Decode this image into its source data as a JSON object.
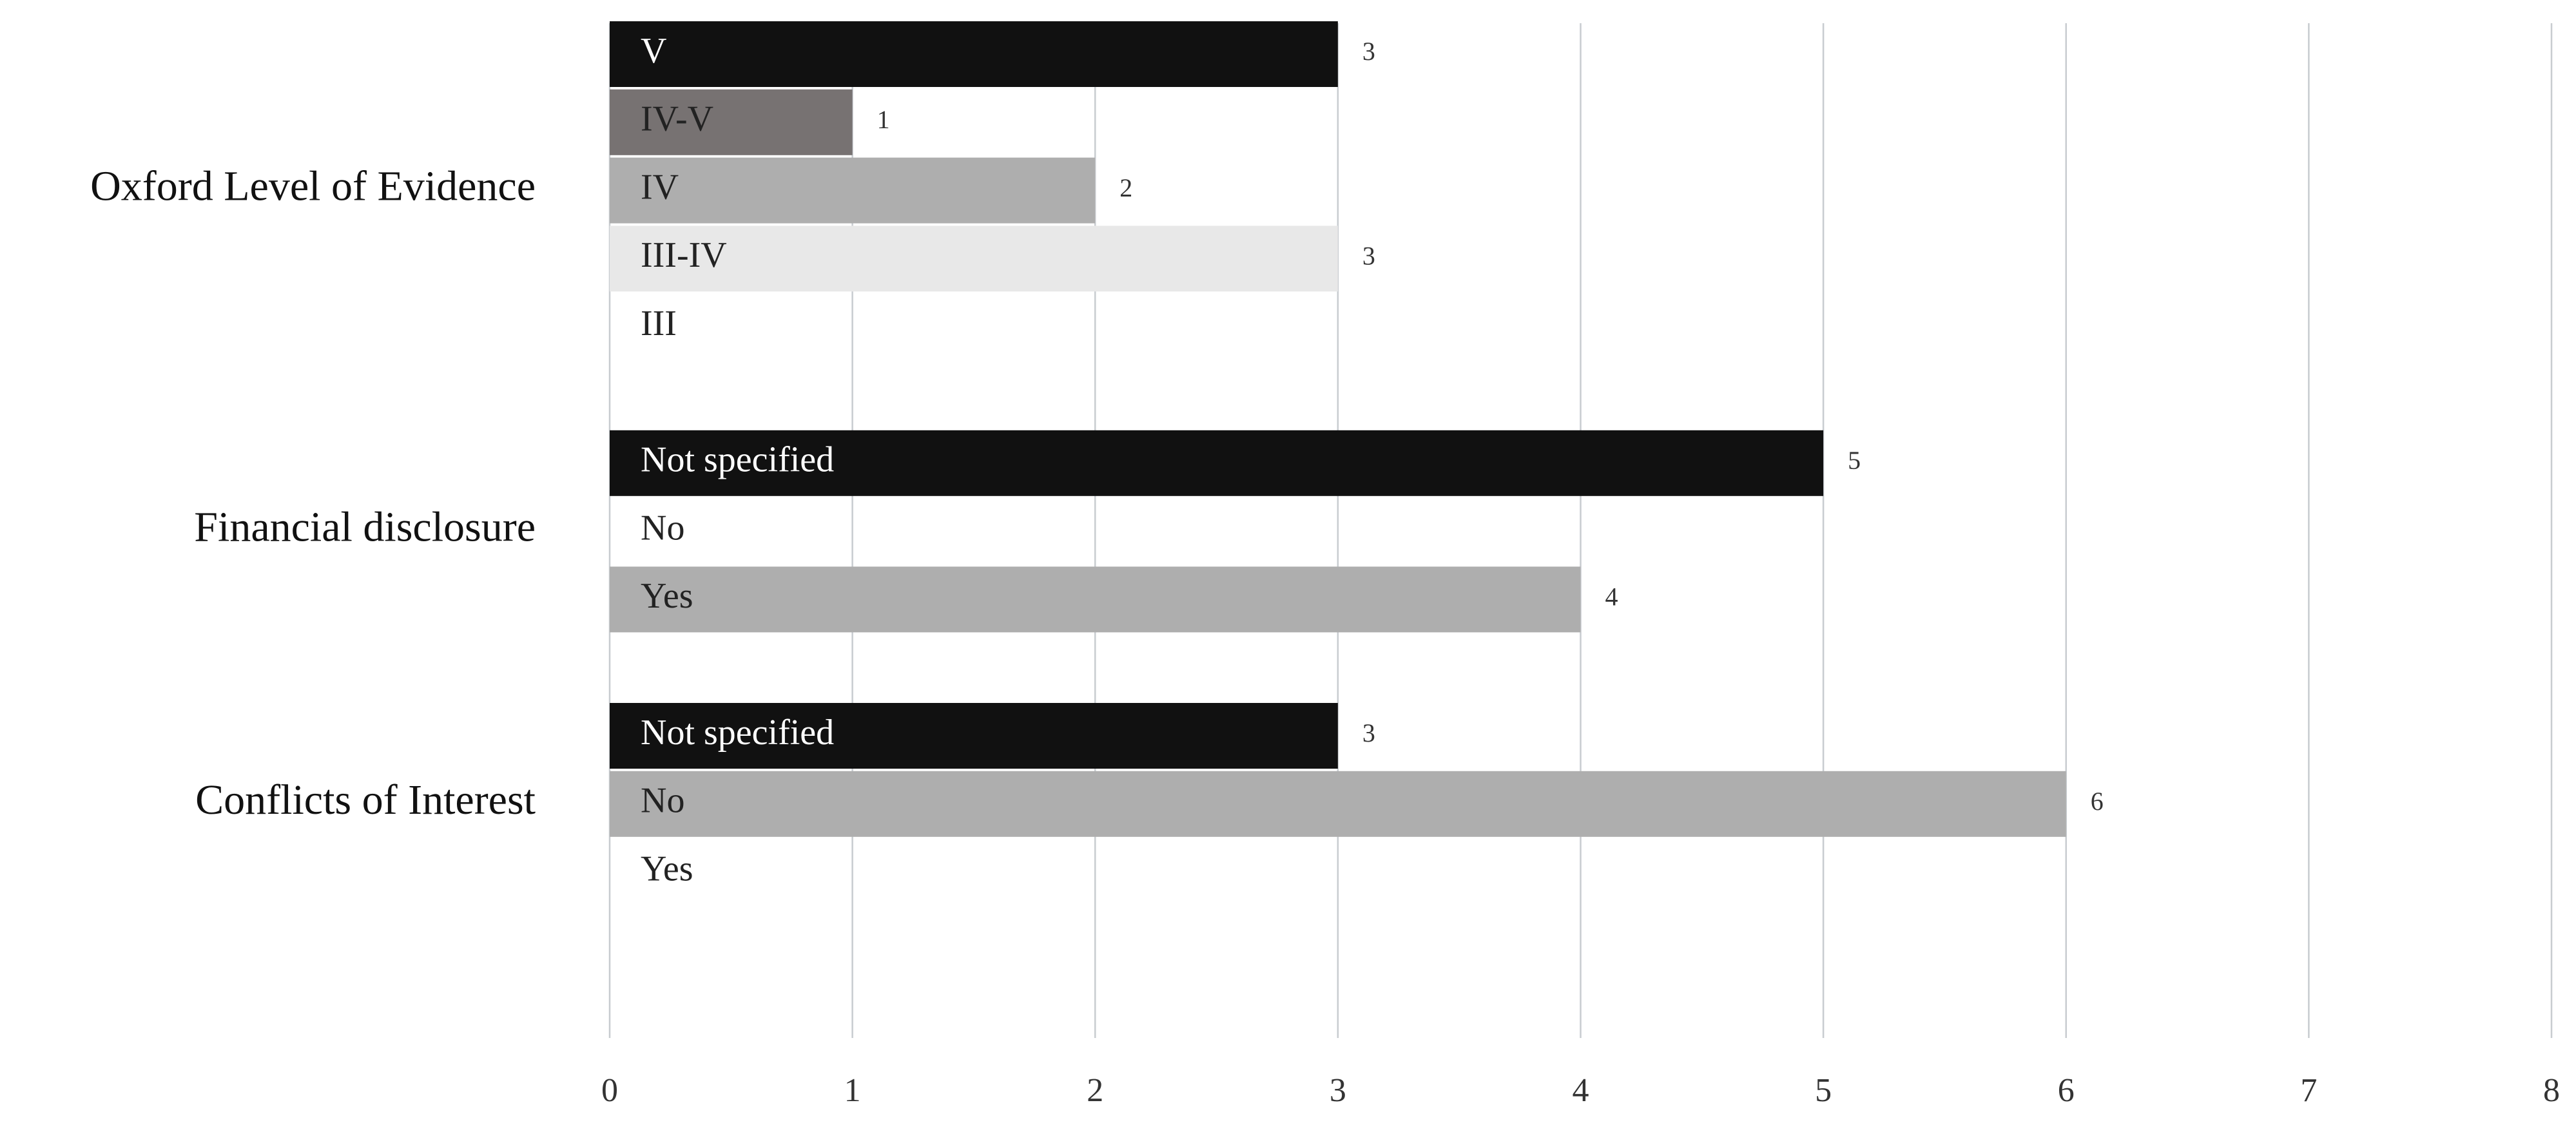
{
  "chart_data": {
    "type": "bar",
    "orientation": "horizontal",
    "groups": [
      {
        "name": "Oxford Level of Evidence",
        "categories": [
          "V",
          "IV-V",
          "IV",
          "III-IV",
          "III"
        ],
        "values": [
          3,
          1,
          2,
          3,
          0
        ],
        "colors": [
          "#111111",
          "#777272",
          "#aeaeae",
          "#e8e8e8",
          "#ffffff"
        ]
      },
      {
        "name": "Financial disclosure",
        "categories": [
          "Not specified",
          "No",
          "Yes"
        ],
        "values": [
          5,
          0,
          4
        ],
        "colors": [
          "#111111",
          "#ffffff",
          "#aeaeae"
        ]
      },
      {
        "name": "Conflicts of Interest",
        "categories": [
          "Not specified",
          "No",
          "Yes"
        ],
        "values": [
          3,
          6,
          0
        ],
        "colors": [
          "#111111",
          "#aeaeae",
          "#ffffff"
        ]
      }
    ],
    "xlim": [
      0,
      8
    ],
    "xticks": [
      0,
      1,
      2,
      3,
      4,
      5,
      6,
      7,
      8
    ],
    "grid": true
  }
}
